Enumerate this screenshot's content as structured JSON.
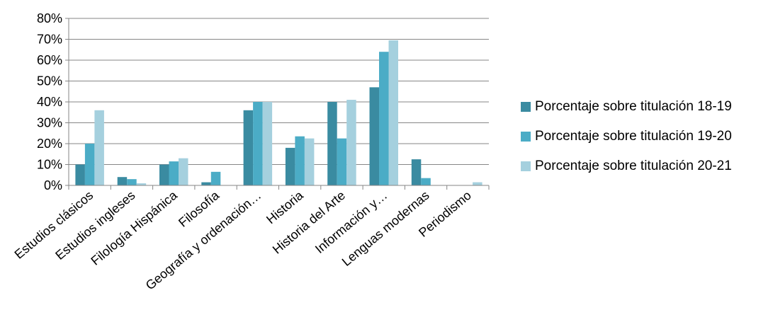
{
  "chart_data": {
    "type": "bar",
    "title": "",
    "xlabel": "",
    "ylabel": "",
    "ylim": [
      0,
      80
    ],
    "y_ticks": [
      "0%",
      "10%",
      "20%",
      "30%",
      "40%",
      "50%",
      "60%",
      "70%",
      "80%"
    ],
    "y_tick_values": [
      0,
      10,
      20,
      30,
      40,
      50,
      60,
      70,
      80
    ],
    "grid": true,
    "legend_position": "right",
    "categories": [
      "Estudios clásicos",
      "Estudios ingleses",
      "Filología Hispánica",
      "Filosofía",
      "Geografía  y ordenación…",
      "Historia",
      "Historia del Arte",
      "Información y…",
      "Lenguas modernas",
      "Periodismo"
    ],
    "series": [
      {
        "name": "Porcentaje sobre titulación 18-19",
        "color": "#3A8BA1",
        "values": [
          10,
          4,
          10,
          1.5,
          36,
          18,
          40,
          47,
          12.5,
          0
        ]
      },
      {
        "name": "Porcentaje sobre titulación 19-20",
        "color": "#4BACC6",
        "values": [
          20,
          3,
          11.5,
          6.5,
          40,
          23.5,
          22.5,
          64,
          3.5,
          0
        ]
      },
      {
        "name": "Porcentaje sobre titulación 20-21",
        "color": "#A5D0DE",
        "values": [
          36,
          1,
          13,
          0,
          40,
          22.5,
          41,
          69.5,
          0,
          1.5
        ]
      }
    ]
  }
}
